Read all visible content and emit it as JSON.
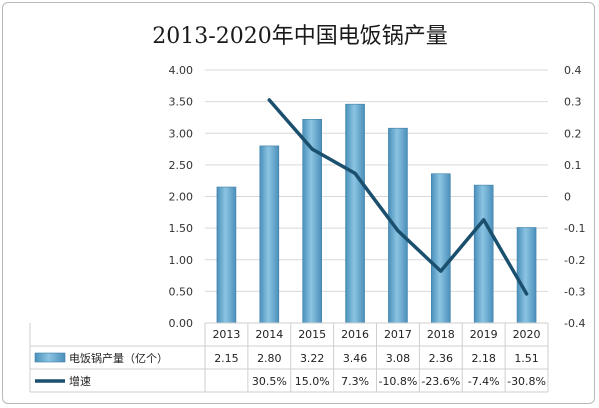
{
  "chart_data": {
    "type": "bar",
    "title": "2013-2020年中国电饭锅产量",
    "categories": [
      "2013",
      "2014",
      "2015",
      "2016",
      "2017",
      "2018",
      "2019",
      "2020"
    ],
    "series": [
      {
        "name": "电饭锅产量（亿个）",
        "type": "bar",
        "axis": "left",
        "values": [
          2.15,
          2.8,
          3.22,
          3.46,
          3.08,
          2.36,
          2.18,
          1.51
        ],
        "labels": [
          "2.15",
          "2.80",
          "3.22",
          "3.46",
          "3.08",
          "2.36",
          "2.18",
          "1.51"
        ],
        "color": "#5fa3c9"
      },
      {
        "name": "增速",
        "type": "line",
        "axis": "right",
        "values": [
          null,
          0.305,
          0.15,
          0.073,
          -0.108,
          -0.236,
          -0.074,
          -0.308
        ],
        "labels": [
          "",
          "30.5%",
          "15.0%",
          "7.3%",
          "-10.8%",
          "-23.6%",
          "-7.4%",
          "-30.8%"
        ],
        "color": "#1b4f6e"
      }
    ],
    "ylim_left": [
      0,
      4
    ],
    "yticks_left": [
      "0.00",
      "0.50",
      "1.00",
      "1.50",
      "2.00",
      "2.50",
      "3.00",
      "3.50",
      "4.00"
    ],
    "ylim_right": [
      -0.4,
      0.4
    ],
    "yticks_right": [
      "-0.4",
      "-0.3",
      "-0.2",
      "-0.1",
      "0",
      "0.1",
      "0.2",
      "0.3",
      "0.4"
    ],
    "grid": true,
    "legend": "data-table"
  }
}
